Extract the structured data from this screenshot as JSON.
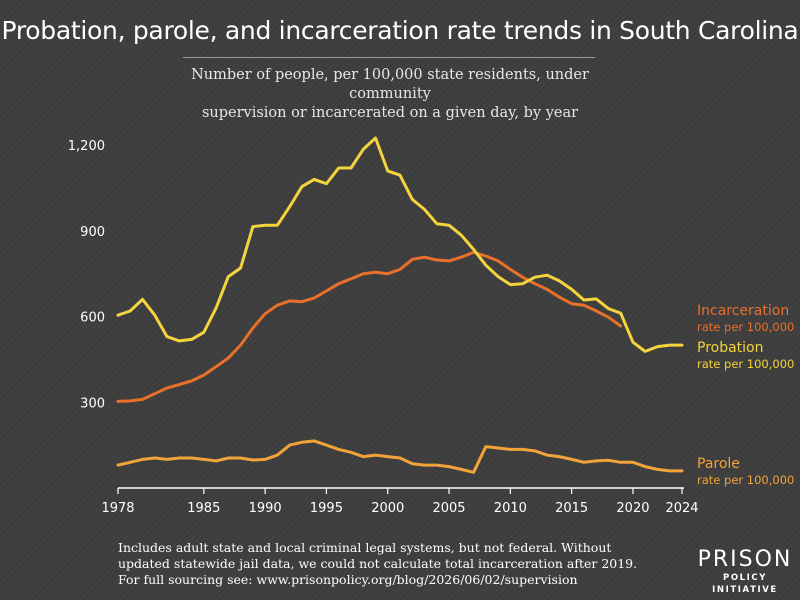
{
  "title": "Probation, parole, and incarceration rate trends in South Carolina",
  "subtitle_line1": "Number of people, per 100,000 state residents, under community",
  "subtitle_line2": "supervision or incarcerated on a given day, by year",
  "footnote": {
    "line1": "Includes adult state and local criminal legal systems, but not federal. Without",
    "line2": "updated statewide jail data, we could not calculate total incarceration after 2019.",
    "line3": "For full sourcing see: www.prisonpolicy.org/blog/2026/06/02/supervision"
  },
  "logo": {
    "top": "PRISON",
    "bottom": "POLICY INITIATIVE"
  },
  "colors": {
    "probation": "#f5d33c",
    "incarceration": "#e8702a",
    "parole": "#f2a33a",
    "text": "#ffffff",
    "background": "#3d3d3d"
  },
  "chart_data": {
    "type": "line",
    "title": "Probation, parole, and incarceration rate trends in South Carolina",
    "xlabel": "",
    "ylabel": "",
    "xlim": [
      1978,
      2024
    ],
    "ylim": [
      0,
      1230
    ],
    "x_ticks": [
      1978,
      1985,
      1990,
      1995,
      2000,
      2005,
      2010,
      2015,
      2020,
      2024
    ],
    "x_tick_labels": [
      "1978",
      "1985",
      "1990",
      "1995",
      "2000",
      "2005",
      "2010",
      "2015",
      "2020",
      "2024"
    ],
    "y_ticks": [
      300,
      600,
      900,
      1200
    ],
    "y_tick_labels": [
      "300",
      "600",
      "900",
      "1,200"
    ],
    "grid": false,
    "series": [
      {
        "key": "incarceration",
        "name": "Incarceration",
        "sublabel": "rate per 100,000",
        "color": "#e8702a",
        "x": [
          1978,
          1979,
          1980,
          1981,
          1982,
          1983,
          1984,
          1985,
          1986,
          1987,
          1988,
          1989,
          1990,
          1991,
          1992,
          1993,
          1994,
          1995,
          1996,
          1997,
          1998,
          1999,
          2000,
          2001,
          2002,
          2003,
          2004,
          2005,
          2006,
          2007,
          2008,
          2009,
          2010,
          2011,
          2012,
          2013,
          2014,
          2015,
          2016,
          2017,
          2018,
          2019
        ],
        "values": [
          303,
          305,
          310,
          330,
          350,
          362,
          375,
          395,
          425,
          455,
          500,
          560,
          610,
          640,
          655,
          652,
          665,
          690,
          715,
          732,
          750,
          755,
          750,
          765,
          800,
          808,
          798,
          795,
          808,
          825,
          812,
          795,
          765,
          738,
          715,
          695,
          668,
          645,
          640,
          620,
          598,
          567
        ]
      },
      {
        "key": "probation",
        "name": "Probation",
        "sublabel": "rate per 100,000",
        "color": "#f5d33c",
        "x": [
          1978,
          1979,
          1980,
          1981,
          1982,
          1983,
          1984,
          1985,
          1986,
          1987,
          1988,
          1989,
          1990,
          1991,
          1992,
          1993,
          1994,
          1995,
          1996,
          1997,
          1998,
          1999,
          2000,
          2001,
          2002,
          2003,
          2004,
          2005,
          2006,
          2007,
          2008,
          2009,
          2010,
          2011,
          2012,
          2013,
          2014,
          2015,
          2016,
          2017,
          2018,
          2019,
          2020,
          2021,
          2022,
          2023,
          2024
        ],
        "values": [
          605,
          620,
          660,
          605,
          530,
          515,
          520,
          545,
          630,
          740,
          770,
          915,
          920,
          920,
          985,
          1055,
          1080,
          1065,
          1120,
          1120,
          1185,
          1225,
          1110,
          1095,
          1010,
          975,
          925,
          920,
          885,
          835,
          780,
          740,
          712,
          715,
          738,
          745,
          725,
          695,
          658,
          662,
          628,
          612,
          510,
          478,
          495,
          500,
          500
        ]
      },
      {
        "key": "parole",
        "name": "Parole",
        "sublabel": "rate per 100,000",
        "color": "#f2a33a",
        "x": [
          1978,
          1979,
          1980,
          1981,
          1982,
          1983,
          1984,
          1985,
          1986,
          1987,
          1988,
          1989,
          1990,
          1991,
          1992,
          1993,
          1994,
          1995,
          1996,
          1997,
          1998,
          1999,
          2000,
          2001,
          2002,
          2003,
          2004,
          2005,
          2006,
          2007,
          2008,
          2009,
          2010,
          2011,
          2012,
          2013,
          2014,
          2015,
          2016,
          2017,
          2018,
          2019,
          2020,
          2021,
          2022,
          2023,
          2024
        ],
        "values": [
          80,
          90,
          100,
          105,
          100,
          105,
          105,
          100,
          95,
          105,
          105,
          98,
          100,
          115,
          150,
          160,
          165,
          150,
          135,
          125,
          110,
          115,
          110,
          105,
          85,
          80,
          80,
          75,
          65,
          55,
          145,
          140,
          135,
          135,
          130,
          115,
          110,
          100,
          90,
          95,
          97,
          90,
          90,
          75,
          65,
          60,
          60
        ]
      }
    ]
  }
}
